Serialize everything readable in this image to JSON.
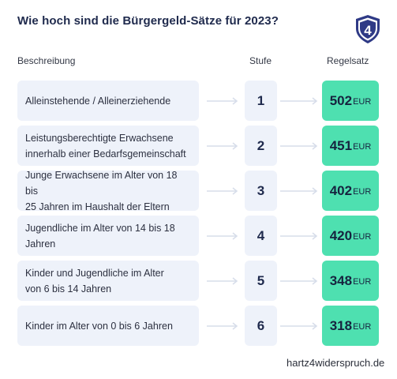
{
  "title": "Wie hoch sind die Bürgergeld-Sätze für 2023?",
  "logo": {
    "icon": "shield-4-logo",
    "text": "4",
    "color": "#2f3a86"
  },
  "headers": {
    "description": "Beschreibung",
    "level": "Stufe",
    "rate": "Regelsatz"
  },
  "colors": {
    "row_bg": "#eef2fa",
    "rate_bg": "#4ee0b0",
    "title": "#1f2a4d"
  },
  "rows": [
    {
      "description": "Alleinstehende / Alleinerziehende",
      "level": "1",
      "amount": "502",
      "currency": "EUR"
    },
    {
      "description": "Leistungsberechtigte Erwachsene\ninnerhalb einer Bedarfsgemeinschaft",
      "level": "2",
      "amount": "451",
      "currency": "EUR"
    },
    {
      "description": "Junge Erwachsene im Alter von 18 bis\n25 Jahren im Haushalt der Eltern",
      "level": "3",
      "amount": "402",
      "currency": "EUR"
    },
    {
      "description": "Jugendliche im Alter von 14 bis 18\nJahren",
      "level": "4",
      "amount": "420",
      "currency": "EUR"
    },
    {
      "description": "Kinder und Jugendliche im Alter\nvon 6 bis 14 Jahren",
      "level": "5",
      "amount": "348",
      "currency": "EUR"
    },
    {
      "description": "Kinder im Alter von 0 bis 6 Jahren",
      "level": "6",
      "amount": "318",
      "currency": "EUR"
    }
  ],
  "footer": "hartz4widerspruch.de"
}
